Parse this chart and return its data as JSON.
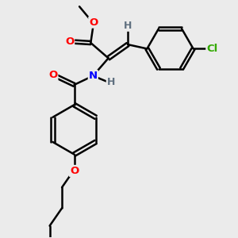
{
  "background_color": "#ebebeb",
  "atom_colors": {
    "O": "#ff0000",
    "N": "#0000ff",
    "Cl": "#33aa00",
    "C": "#000000",
    "H": "#607080"
  },
  "bond_color": "#000000",
  "bond_width": 1.8,
  "figsize": [
    3.0,
    3.0
  ],
  "dpi": 100
}
